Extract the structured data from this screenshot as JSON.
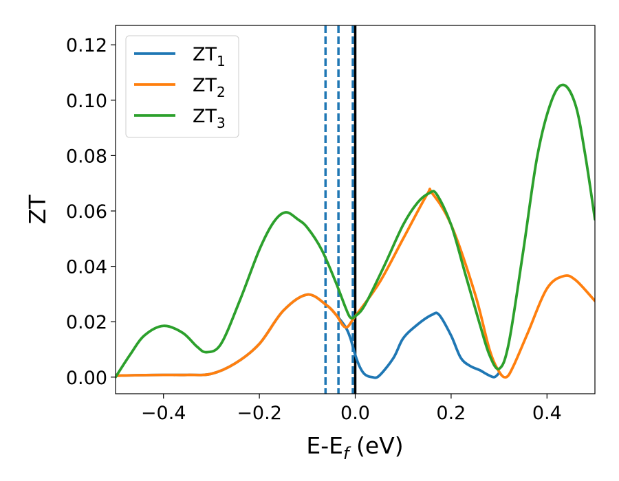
{
  "chart_data": {
    "type": "line",
    "xlabel": "E-E",
    "xlabel_sub": "f",
    "xlabel_unit": "(eV)",
    "ylabel": "ZT",
    "xlim": [
      -0.5,
      0.5
    ],
    "ylim": [
      -0.006,
      0.127
    ],
    "xticks": [
      -0.4,
      -0.2,
      0.0,
      0.2,
      0.4
    ],
    "xtick_labels": [
      "−0.4",
      "−0.2",
      "0.0",
      "0.2",
      "0.4"
    ],
    "yticks": [
      0.0,
      0.02,
      0.04,
      0.06,
      0.08,
      0.1,
      0.12
    ],
    "ytick_labels": [
      "0.00",
      "0.02",
      "0.04",
      "0.06",
      "0.08",
      "0.10",
      "0.12"
    ],
    "grid": false,
    "legend_position": "top-left",
    "series": [
      {
        "name": "ZT",
        "sub": "1",
        "color": "#1f77b4",
        "points": [
          [
            -0.5,
            0.0005
          ],
          [
            -0.45,
            0.0007
          ],
          [
            -0.4,
            0.0008
          ],
          [
            -0.35,
            0.0008
          ],
          [
            -0.3,
            0.0012
          ],
          [
            -0.25,
            0.005
          ],
          [
            -0.2,
            0.012
          ],
          [
            -0.15,
            0.024
          ],
          [
            -0.1,
            0.0298
          ],
          [
            -0.06,
            0.026
          ],
          [
            -0.04,
            0.0225
          ],
          [
            -0.02,
            0.018
          ],
          [
            -0.01,
            0.014
          ],
          [
            0.0,
            0.008
          ],
          [
            0.01,
            0.0035
          ],
          [
            0.02,
            0.001
          ],
          [
            0.035,
            0.0
          ],
          [
            0.05,
            0.0005
          ],
          [
            0.08,
            0.007
          ],
          [
            0.1,
            0.014
          ],
          [
            0.13,
            0.019
          ],
          [
            0.16,
            0.0225
          ],
          [
            0.175,
            0.0225
          ],
          [
            0.2,
            0.015
          ],
          [
            0.22,
            0.007
          ],
          [
            0.24,
            0.004
          ],
          [
            0.26,
            0.0025
          ],
          [
            0.275,
            0.001
          ],
          [
            0.29,
            0.0
          ],
          [
            0.3,
            0.0015
          ]
        ]
      },
      {
        "name": "ZT",
        "sub": "2",
        "color": "#ff7f0e",
        "points": [
          [
            -0.5,
            0.0005
          ],
          [
            -0.45,
            0.0007
          ],
          [
            -0.4,
            0.0008
          ],
          [
            -0.35,
            0.0008
          ],
          [
            -0.3,
            0.0012
          ],
          [
            -0.25,
            0.005
          ],
          [
            -0.2,
            0.012
          ],
          [
            -0.15,
            0.024
          ],
          [
            -0.1,
            0.0298
          ],
          [
            -0.06,
            0.026
          ],
          [
            -0.04,
            0.0225
          ],
          [
            -0.02,
            0.018
          ],
          [
            0.0,
            0.022
          ],
          [
            0.05,
            0.034
          ],
          [
            0.1,
            0.05
          ],
          [
            0.15,
            0.066
          ],
          [
            0.16,
            0.0665
          ],
          [
            0.2,
            0.055
          ],
          [
            0.25,
            0.03
          ],
          [
            0.28,
            0.01
          ],
          [
            0.3,
            0.002
          ],
          [
            0.315,
            0.0
          ],
          [
            0.33,
            0.004
          ],
          [
            0.36,
            0.016
          ],
          [
            0.4,
            0.032
          ],
          [
            0.435,
            0.0365
          ],
          [
            0.46,
            0.035
          ],
          [
            0.5,
            0.0275
          ]
        ]
      },
      {
        "name": "ZT",
        "sub": "3",
        "color": "#2ca02c",
        "points": [
          [
            -0.5,
            0.0
          ],
          [
            -0.47,
            0.008
          ],
          [
            -0.44,
            0.015
          ],
          [
            -0.4,
            0.0185
          ],
          [
            -0.36,
            0.016
          ],
          [
            -0.33,
            0.011
          ],
          [
            -0.31,
            0.009
          ],
          [
            -0.28,
            0.012
          ],
          [
            -0.24,
            0.028
          ],
          [
            -0.2,
            0.046
          ],
          [
            -0.17,
            0.056
          ],
          [
            -0.145,
            0.0595
          ],
          [
            -0.12,
            0.057
          ],
          [
            -0.1,
            0.054
          ],
          [
            -0.07,
            0.046
          ],
          [
            -0.04,
            0.034
          ],
          [
            -0.02,
            0.025
          ],
          [
            -0.01,
            0.0215
          ],
          [
            0.0,
            0.022
          ],
          [
            0.02,
            0.026
          ],
          [
            0.06,
            0.04
          ],
          [
            0.1,
            0.055
          ],
          [
            0.13,
            0.063
          ],
          [
            0.155,
            0.0665
          ],
          [
            0.17,
            0.066
          ],
          [
            0.2,
            0.055
          ],
          [
            0.23,
            0.037
          ],
          [
            0.26,
            0.019
          ],
          [
            0.28,
            0.008
          ],
          [
            0.3,
            0.003
          ],
          [
            0.32,
            0.012
          ],
          [
            0.35,
            0.045
          ],
          [
            0.38,
            0.08
          ],
          [
            0.41,
            0.1
          ],
          [
            0.435,
            0.1055
          ],
          [
            0.46,
            0.098
          ],
          [
            0.48,
            0.08
          ],
          [
            0.5,
            0.057
          ]
        ]
      }
    ],
    "vlines": [
      {
        "x": -0.062,
        "style": "dashed",
        "color": "#1f77b4"
      },
      {
        "x": -0.035,
        "style": "dashed",
        "color": "#1f77b4"
      },
      {
        "x": -0.005,
        "style": "dashed",
        "color": "#1f77b4"
      },
      {
        "x": 0.0,
        "style": "solid",
        "color": "#000000"
      }
    ]
  }
}
